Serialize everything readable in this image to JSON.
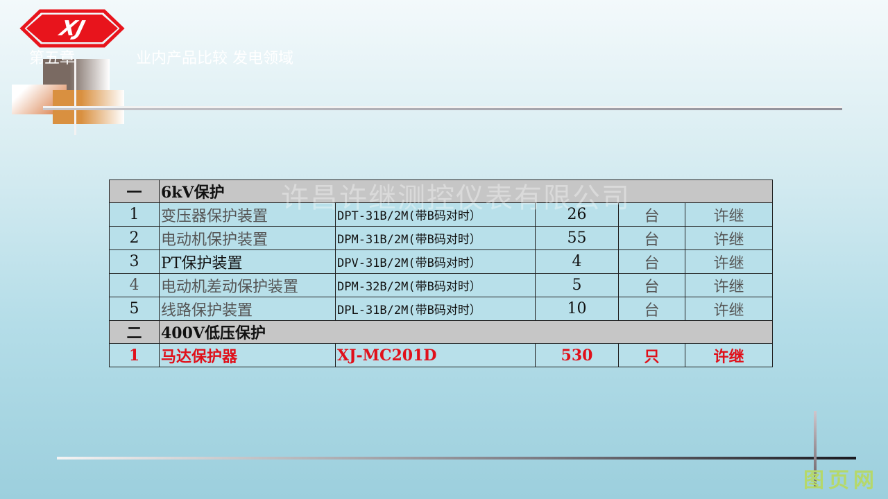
{
  "header": {
    "logo_text": "XJ",
    "chapter": "第五章",
    "title": "业内产品比较 发电领域"
  },
  "watermark": "许昌许继测控仪表有限公司",
  "site_mark": "图页网",
  "colors": {
    "logo_red": "#e8141c",
    "highlight_red": "#e0101a",
    "section_gray": "#c6c6c6",
    "cell_blue": "#b8e0ea"
  },
  "table": {
    "sections": [
      {
        "no": "一",
        "title": "6kV保护",
        "rows": [
          {
            "no": "1",
            "name": "变压器保护装置",
            "model": "DPT-31B/2M(带B码对时）",
            "qty": "26",
            "unit": "台",
            "maker": "许继"
          },
          {
            "no": "2",
            "name": "电动机保护装置",
            "model": "DPM-31B/2M(带B码对时）",
            "qty": "55",
            "unit": "台",
            "maker": "许继"
          },
          {
            "no": "3",
            "name": "PT保护装置",
            "model": "DPV-31B/2M(带B码对时）",
            "qty": "4",
            "unit": "台",
            "maker": "许继"
          },
          {
            "no": "4",
            "name": "电动机差动保护装置",
            "model": "DPM-32B/2M(带B码对时）",
            "qty": "5",
            "unit": "台",
            "maker": "许继"
          },
          {
            "no": "5",
            "name": "线路保护装置",
            "model": "DPL-31B/2M(带B码对时）",
            "qty": "10",
            "unit": "台",
            "maker": "许继"
          }
        ]
      },
      {
        "no": "二",
        "title": "400V低压保护",
        "rows": [
          {
            "no": "1",
            "name": "马达保护器",
            "model": "XJ-MC201D",
            "qty": "530",
            "unit": "只",
            "maker": "许继"
          }
        ]
      }
    ]
  }
}
